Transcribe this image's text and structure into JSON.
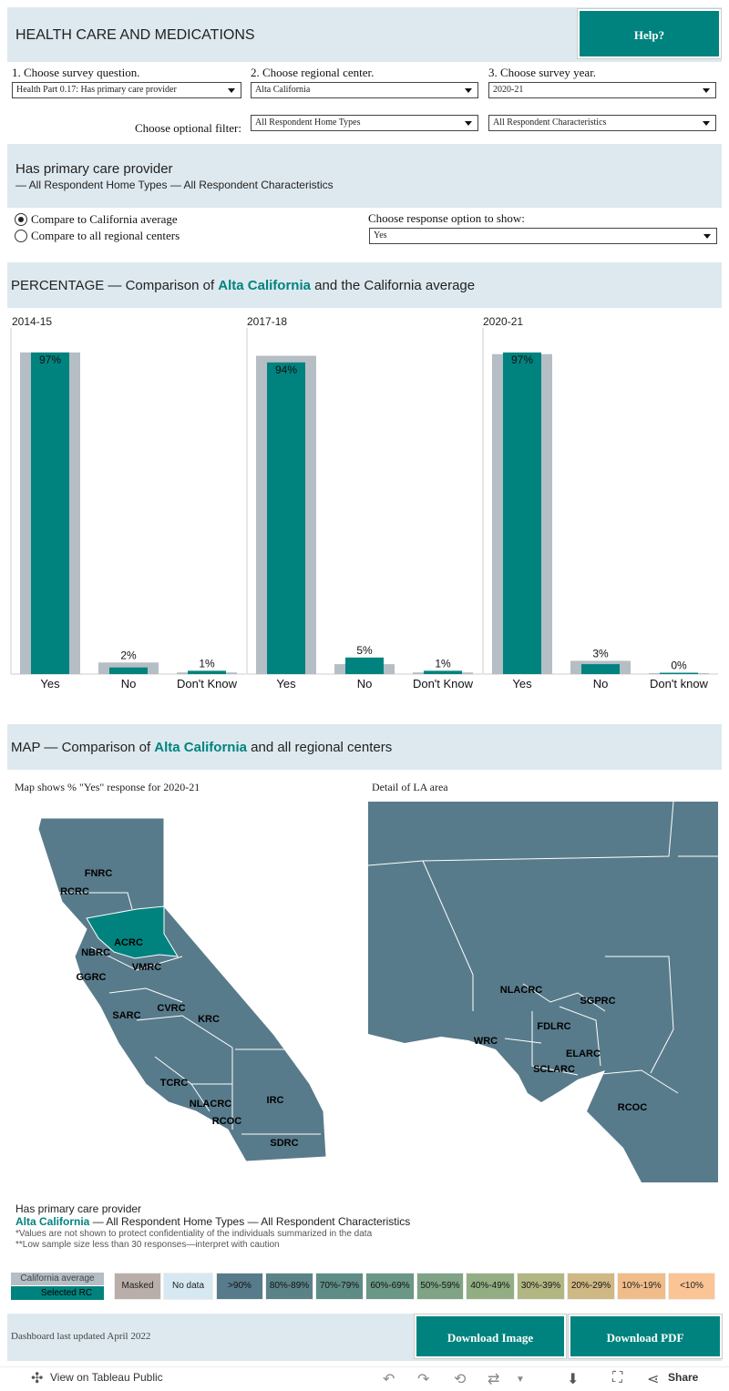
{
  "header": {
    "title": "HEALTH CARE AND MEDICATIONS",
    "help_label": "Help?"
  },
  "filters": {
    "q_label": "1. Choose survey question.",
    "q_value": "Health Part 0.17: Has primary care provider",
    "rc_label": "2. Choose regional center.",
    "rc_value": "Alta California",
    "yr_label": "3. Choose survey year.",
    "yr_value": "2020-21",
    "opt_label": "Choose optional filter:",
    "home_value": "All Respondent Home Types",
    "char_value": "All Respondent Characteristics"
  },
  "summary": {
    "title": "Has primary care provider",
    "subtitle": "— All Respondent Home Types — All Respondent Characteristics"
  },
  "compare": {
    "opt1": "Compare to California average",
    "opt2": "Compare to all regional centers",
    "resp_label": "Choose response option to show:",
    "resp_value": "Yes",
    "selected": "opt1"
  },
  "pct_header": {
    "prefix": "PERCENTAGE — Comparison of ",
    "rc": "Alta California",
    "suffix": " and the California average"
  },
  "colors": {
    "teal": "#00837e",
    "grey": "#b4bec4",
    "map": "#587b8b",
    "band": "#dde9ef"
  },
  "chart_data": [
    {
      "type": "bar",
      "title": "2014-15",
      "categories": [
        "Yes",
        "No",
        "Don't Know"
      ],
      "ylim": [
        0,
        100
      ],
      "series": [
        {
          "name": "Alta California",
          "values": [
            97,
            2,
            1
          ]
        },
        {
          "name": "California average",
          "values": [
            97,
            3.5,
            0.5
          ]
        }
      ],
      "labels": [
        "97%",
        "2%",
        "1%"
      ]
    },
    {
      "type": "bar",
      "title": "2017-18",
      "categories": [
        "Yes",
        "No",
        "Don't Know"
      ],
      "ylim": [
        0,
        100
      ],
      "series": [
        {
          "name": "Alta California",
          "values": [
            94,
            5,
            1
          ]
        },
        {
          "name": "California average",
          "values": [
            96,
            3,
            0.5
          ]
        }
      ],
      "labels": [
        "94%",
        "5%",
        "1%"
      ]
    },
    {
      "type": "bar",
      "title": "2020-21",
      "categories": [
        "Yes",
        "No",
        "Don't know"
      ],
      "ylim": [
        0,
        100
      ],
      "series": [
        {
          "name": "Alta California",
          "values": [
            97,
            3,
            0
          ]
        },
        {
          "name": "California average",
          "values": [
            96.5,
            4,
            0.3
          ]
        }
      ],
      "labels": [
        "97%",
        "3%",
        "0%"
      ]
    }
  ],
  "map_header": {
    "prefix": "MAP — Comparison of ",
    "rc": "Alta California",
    "suffix": " and all regional centers"
  },
  "map": {
    "left_caption": "Map shows % \"Yes\" response for 2020-21",
    "right_caption": "Detail of LA area",
    "ca_labels": [
      "FNRC",
      "RCRC",
      "ACRC",
      "NBRC",
      "VMRC",
      "GGRC",
      "SARC",
      "CVRC",
      "KRC",
      "TCRC",
      "NLACRC",
      "RCOC",
      "IRC",
      "SDRC"
    ],
    "la_labels": [
      "NLACRC",
      "SGPRC",
      "FDLRC",
      "WRC",
      "ELARC",
      "SCLARC",
      "RCOC"
    ]
  },
  "notes": {
    "title": "Has primary care provider",
    "rc": "Alta California",
    "rest": " — All Respondent Home Types — All Respondent Characteristics",
    "n1": "*Values are not shown to protect confidentiality of the individuals summarized in the data",
    "n2": "**Low sample size less than 30 responses—interpret with caution"
  },
  "legend": {
    "ca_avg": "California average",
    "selected": "Selected RC",
    "items": [
      {
        "label": "Masked",
        "color": "#b9aea9"
      },
      {
        "label": "No data",
        "color": "#d6e8f2"
      },
      {
        "label": ">90%",
        "color": "#587b8b"
      },
      {
        "label": "80%-89%",
        "color": "#5b8387"
      },
      {
        "label": "70%-79%",
        "color": "#5f8c86"
      },
      {
        "label": "60%-69%",
        "color": "#6a9786"
      },
      {
        "label": "50%-59%",
        "color": "#7fa385"
      },
      {
        "label": "40%-49%",
        "color": "#94ae83"
      },
      {
        "label": "30%-39%",
        "color": "#b2b683"
      },
      {
        "label": "20%-29%",
        "color": "#cfb884"
      },
      {
        "label": "10%-19%",
        "color": "#f0bc8a"
      },
      {
        "label": "<10%",
        "color": "#fbc495"
      }
    ]
  },
  "footer": {
    "updated": "Dashboard last updated April 2022",
    "dl_image": "Download Image",
    "dl_pdf": "Download PDF"
  },
  "toolbar": {
    "view": "View on Tableau Public",
    "share": "Share"
  }
}
